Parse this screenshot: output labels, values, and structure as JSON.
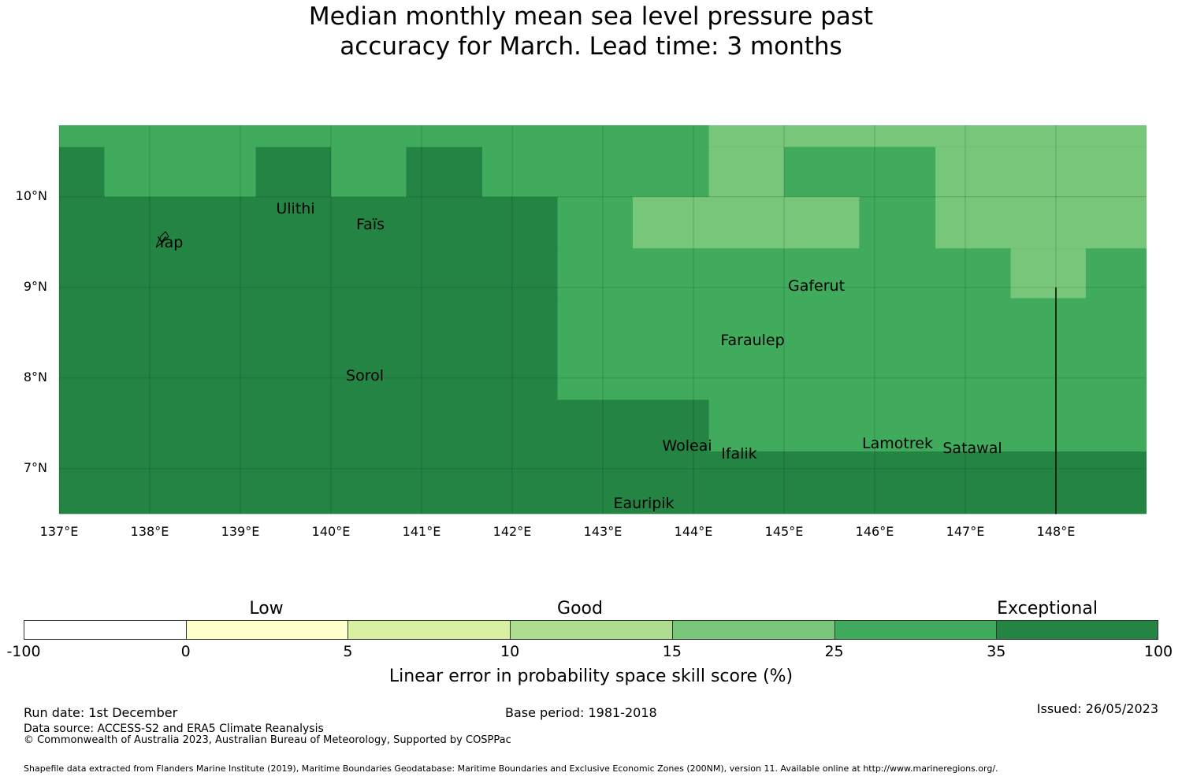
{
  "title": "Median monthly mean sea level pressure past accuracy for March. Lead time: 3 months",
  "title_lines": [
    "Median monthly mean sea level pressure past",
    "accuracy for March. Lead time: 3 months"
  ],
  "map": {
    "extent": {
      "lon": [
        137,
        149
      ],
      "lat": [
        6.5,
        10.79
      ]
    },
    "default_category": "35-100",
    "cells": [
      {
        "lon": [
          137,
          144.17
        ],
        "lat": [
          10.55,
          10.79
        ],
        "cat": "25-35"
      },
      {
        "lon": [
          144.17,
          149
        ],
        "lat": [
          10.55,
          10.79
        ],
        "cat": "15-25"
      },
      {
        "lon": [
          137.5,
          139.17
        ],
        "lat": [
          10,
          10.55
        ],
        "cat": "25-35"
      },
      {
        "lon": [
          140,
          140.83
        ],
        "lat": [
          10,
          10.55
        ],
        "cat": "25-35"
      },
      {
        "lon": [
          141.67,
          144.17
        ],
        "lat": [
          10,
          10.55
        ],
        "cat": "25-35"
      },
      {
        "lon": [
          144.17,
          145
        ],
        "lat": [
          10,
          10.55
        ],
        "cat": "15-25"
      },
      {
        "lon": [
          145,
          146.67
        ],
        "lat": [
          10,
          10.55
        ],
        "cat": "25-35"
      },
      {
        "lon": [
          146.67,
          149
        ],
        "lat": [
          10,
          10.55
        ],
        "cat": "15-25"
      },
      {
        "lon": [
          142.5,
          143.33
        ],
        "lat": [
          9.43,
          10
        ],
        "cat": "25-35"
      },
      {
        "lon": [
          143.33,
          145.83
        ],
        "lat": [
          9.43,
          10
        ],
        "cat": "15-25"
      },
      {
        "lon": [
          145.83,
          146.67
        ],
        "lat": [
          9.43,
          10
        ],
        "cat": "25-35"
      },
      {
        "lon": [
          146.67,
          149
        ],
        "lat": [
          9.43,
          10
        ],
        "cat": "15-25"
      },
      {
        "lon": [
          142.5,
          147.5
        ],
        "lat": [
          8.88,
          9.43
        ],
        "cat": "25-35"
      },
      {
        "lon": [
          147.5,
          148.33
        ],
        "lat": [
          8.88,
          9.43
        ],
        "cat": "15-25"
      },
      {
        "lon": [
          148.33,
          149
        ],
        "lat": [
          8.88,
          9.43
        ],
        "cat": "25-35"
      },
      {
        "lon": [
          142.5,
          149
        ],
        "lat": [
          7.76,
          8.88
        ],
        "cat": "25-35"
      },
      {
        "lon": [
          144.17,
          149
        ],
        "lat": [
          7.19,
          7.76
        ],
        "cat": "25-35"
      }
    ],
    "boundary_line": {
      "lon": 148,
      "lat": [
        6.5,
        9
      ]
    },
    "lat_labels": [
      "10°N",
      "9°N",
      "8°N",
      "7°N"
    ],
    "lat_values": [
      10,
      9,
      8,
      7
    ],
    "lon_labels": [
      "137°E",
      "138°E",
      "139°E",
      "140°E",
      "141°E",
      "142°E",
      "143°E",
      "144°E",
      "145°E",
      "146°E",
      "147°E",
      "148°E"
    ],
    "lon_values": [
      137,
      138,
      139,
      140,
      141,
      142,
      143,
      144,
      145,
      146,
      147,
      148
    ],
    "places": {
      "yap": "Yap",
      "ulithi": "Ulithi",
      "fais": "Faïs",
      "gaferut": "Gaferut",
      "faraulep": "Faraulep",
      "sorol": "Sorol",
      "woleai": "Woleai",
      "ifalik": "Ifalik",
      "lamotrek": "Lamotrek",
      "satawal": "Satawal",
      "eauripik": "Eauripik"
    }
  },
  "colorbar": {
    "categories": {
      "low": "Low",
      "good": "Good",
      "exceptional": "Exceptional"
    },
    "ticks": [
      "-100",
      "0",
      "5",
      "10",
      "15",
      "25",
      "35",
      "100"
    ],
    "segments": [
      {
        "cat": "-100-0",
        "color": "#ffffff"
      },
      {
        "cat": "0-5",
        "color": "#ffffcc"
      },
      {
        "cat": "5-10",
        "color": "#d9f0a3"
      },
      {
        "cat": "10-15",
        "color": "#addd8e"
      },
      {
        "cat": "15-25",
        "color": "#78c679"
      },
      {
        "cat": "25-35",
        "color": "#41ab5d"
      },
      {
        "cat": "35-100",
        "color": "#238443"
      }
    ],
    "label": "Linear error in probability space skill score (%)"
  },
  "footer": {
    "run_date": "Run date: 1st December",
    "base_period": "Base period: 1981-2018",
    "issued": "Issued: 26/05/2023",
    "data_source": "Data source: ACCESS-S2 and ERA5 Climate Reanalysis",
    "copyright": "© Commonwealth of Australia 2023, Australian Bureau of Meteorology, Supported by COSPPac",
    "shapefile": "Shapefile data extracted from Flanders Marine Institute (2019), Maritime Boundaries Geodatabase: Maritime Boundaries and Exclusive Economic Zones (200NM), version 11. Available online at http://www.marineregions.org/."
  }
}
